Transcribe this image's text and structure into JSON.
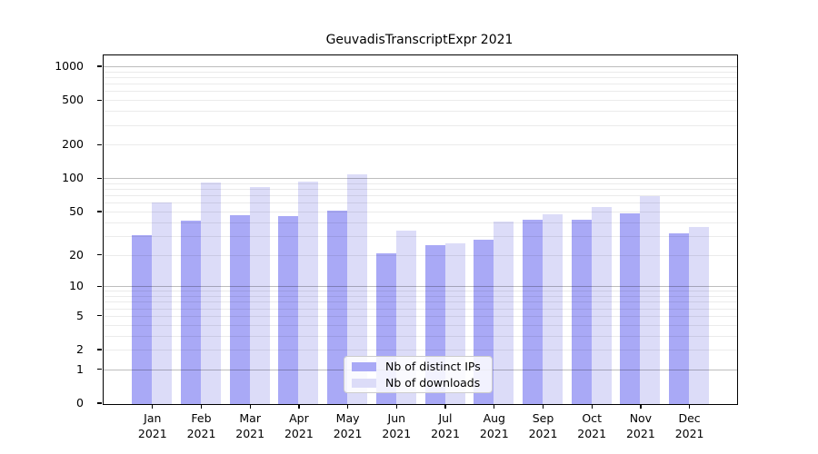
{
  "title": "GeuvadisTranscriptExpr 2021",
  "legend": {
    "items": [
      {
        "label": "Nb of distinct IPs",
        "color": "#a9a9f6"
      },
      {
        "label": "Nb of downloads",
        "color": "#dcdcf8"
      }
    ]
  },
  "chart_data": {
    "type": "bar",
    "title": "GeuvadisTranscriptExpr 2021",
    "categories": [
      "Jan 2021",
      "Feb 2021",
      "Mar 2021",
      "Apr 2021",
      "May 2021",
      "Jun 2021",
      "Jul 2021",
      "Aug 2021",
      "Sep 2021",
      "Oct 2021",
      "Nov 2021",
      "Dec 2021"
    ],
    "category_lines": [
      {
        "month": "Jan",
        "year": "2021"
      },
      {
        "month": "Feb",
        "year": "2021"
      },
      {
        "month": "Mar",
        "year": "2021"
      },
      {
        "month": "Apr",
        "year": "2021"
      },
      {
        "month": "May",
        "year": "2021"
      },
      {
        "month": "Jun",
        "year": "2021"
      },
      {
        "month": "Jul",
        "year": "2021"
      },
      {
        "month": "Aug",
        "year": "2021"
      },
      {
        "month": "Sep",
        "year": "2021"
      },
      {
        "month": "Oct",
        "year": "2021"
      },
      {
        "month": "Nov",
        "year": "2021"
      },
      {
        "month": "Dec",
        "year": "2021"
      }
    ],
    "series": [
      {
        "name": "Nb of distinct IPs",
        "color": "#a9a9f6",
        "values": [
          31,
          42,
          47,
          46,
          52,
          21,
          25,
          28,
          43,
          43,
          49,
          32
        ]
      },
      {
        "name": "Nb of downloads",
        "color": "#dcdcf8",
        "values": [
          61,
          93,
          84,
          95,
          110,
          34,
          26,
          41,
          48,
          56,
          70,
          37
        ]
      }
    ],
    "yscale": "log10(1+v)",
    "y_ticks": [
      0,
      1,
      2,
      5,
      10,
      20,
      50,
      100,
      200,
      500,
      1000
    ],
    "grid_major": [
      1,
      10,
      100,
      1000
    ],
    "grid_minor": [
      2,
      3,
      4,
      5,
      6,
      7,
      8,
      9,
      20,
      30,
      40,
      50,
      60,
      70,
      80,
      90,
      200,
      300,
      400,
      500,
      600,
      700,
      800,
      900
    ],
    "ylim": [
      0,
      1280
    ],
    "xlabel": "",
    "ylabel": "",
    "grid": "on",
    "legend_position": "lower-center",
    "colors": {
      "grid_major": "#bdbdbd",
      "grid_minor": "#ececec",
      "spine": "#000000",
      "background": "#ffffff"
    }
  }
}
